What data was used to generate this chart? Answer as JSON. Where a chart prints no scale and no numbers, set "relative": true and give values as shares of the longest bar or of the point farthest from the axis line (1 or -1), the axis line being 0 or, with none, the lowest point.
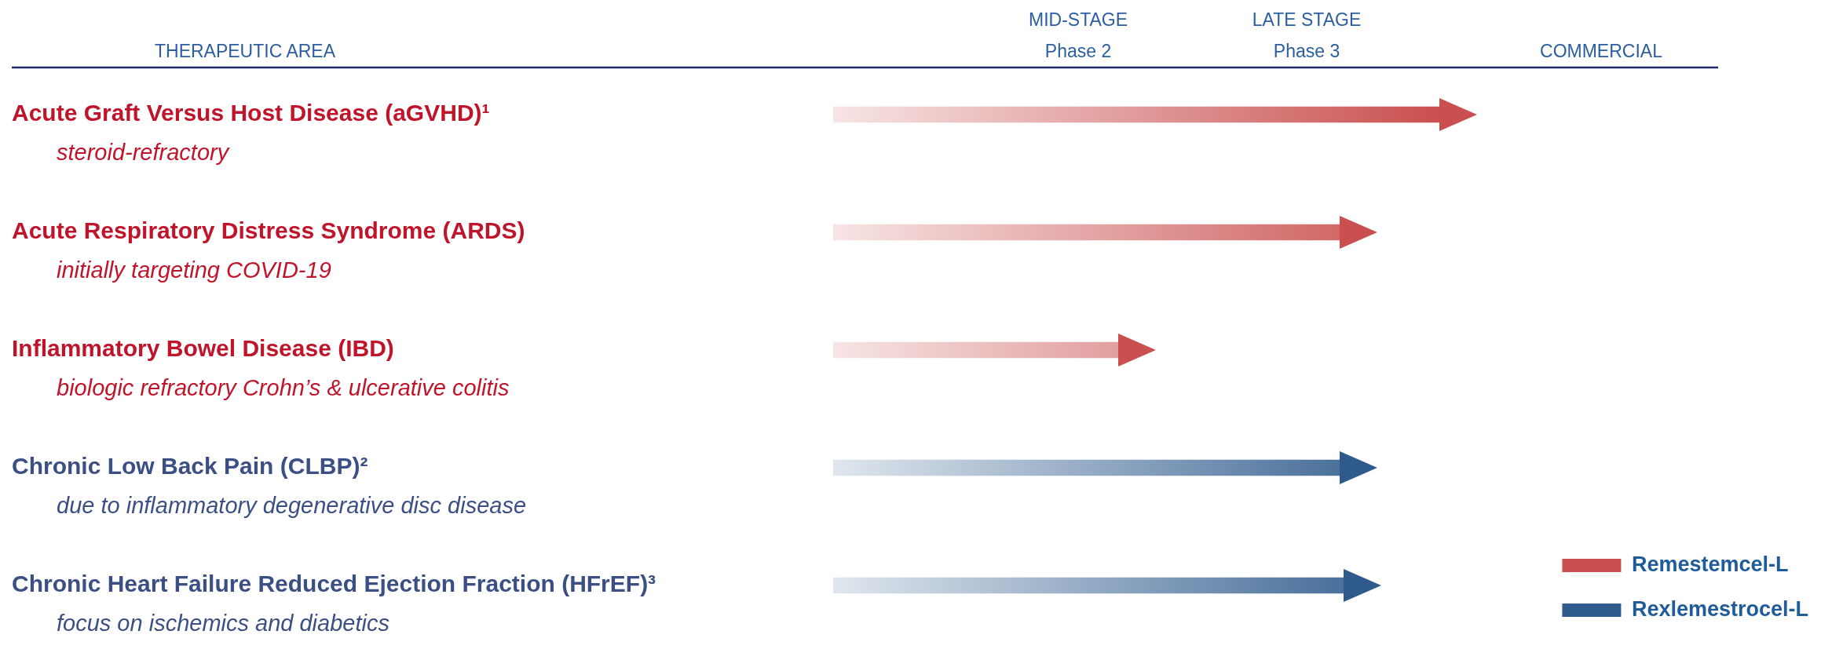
{
  "chart_data": {
    "type": "bar",
    "orientation": "horizontal",
    "relative": true,
    "legend": "bottom right",
    "categories": [
      "Acute Graft Versus Host Disease (aGVHD)¹\nsteroid-refractory",
      "Acute Respiratory Distress Syndrome (ARDS)\ninitially targeting COVID-19",
      "Inflammatory Bowel Disease (IBD)\nbiologic refractory Crohn’s & ulcerative colitis",
      "Chronic Low Back Pain (CLBP)²\ndue to inflammatory degenerative disc disease",
      "Chronic Heart Failure Reduced Ejection Fraction (HFrEF)³\nfocus on ischemics and diabetics"
    ],
    "series": [
      {
        "name": "Remestemcel-L",
        "color": "#c9504f",
        "values": [
          1,
          0.836,
          0.47,
          null,
          null
        ]
      },
      {
        "name": "Rexlemestrocel-L",
        "color": "#2e5a8c",
        "values": [
          null,
          null,
          null,
          0.836,
          0.842
        ]
      }
    ],
    "annotations": [
      "THERAPEUTIC AREA",
      "MID-STAGE\nPhase 2",
      "LATE STAGE\nPhase 3",
      "COMMERCIAL"
    ]
  }
}
